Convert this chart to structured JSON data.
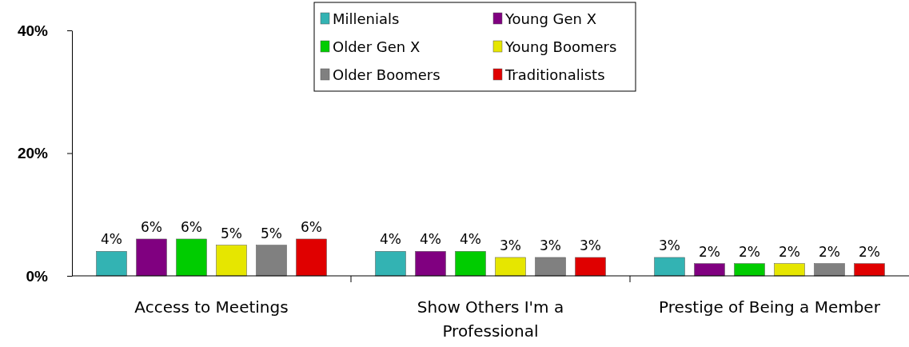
{
  "chart_data": {
    "type": "bar",
    "categories": [
      "Access to Meetings",
      "Show Others I'm a Professional",
      "Prestige of Being a Member"
    ],
    "series": [
      {
        "name": "Millenials",
        "color": "#33b3b3",
        "values": [
          4,
          4,
          3
        ],
        "value_labels": [
          "4%",
          "4%",
          "3%"
        ]
      },
      {
        "name": "Young Gen X",
        "color": "#800080",
        "values": [
          6,
          4,
          2
        ],
        "value_labels": [
          "6%",
          "4%",
          "2%"
        ]
      },
      {
        "name": "Older Gen X",
        "color": "#00cc00",
        "values": [
          6,
          4,
          2
        ],
        "value_labels": [
          "6%",
          "4%",
          "2%"
        ]
      },
      {
        "name": "Young Boomers",
        "color": "#e6e600",
        "values": [
          5,
          3,
          2
        ],
        "value_labels": [
          "5%",
          "3%",
          "2%"
        ]
      },
      {
        "name": "Older Boomers",
        "color": "#808080",
        "values": [
          5,
          3,
          2
        ],
        "value_labels": [
          "5%",
          "3%",
          "2%"
        ]
      },
      {
        "name": "Traditionalists",
        "color": "#e00000",
        "values": [
          6,
          3,
          2
        ],
        "value_labels": [
          "6%",
          "3%",
          "2%"
        ]
      }
    ],
    "ylim": [
      0,
      40
    ],
    "yticks": [
      {
        "value": 0,
        "label": "0%"
      },
      {
        "value": 20,
        "label": "20%"
      },
      {
        "value": 40,
        "label": "40%"
      }
    ],
    "legend": "top",
    "grid": false
  }
}
